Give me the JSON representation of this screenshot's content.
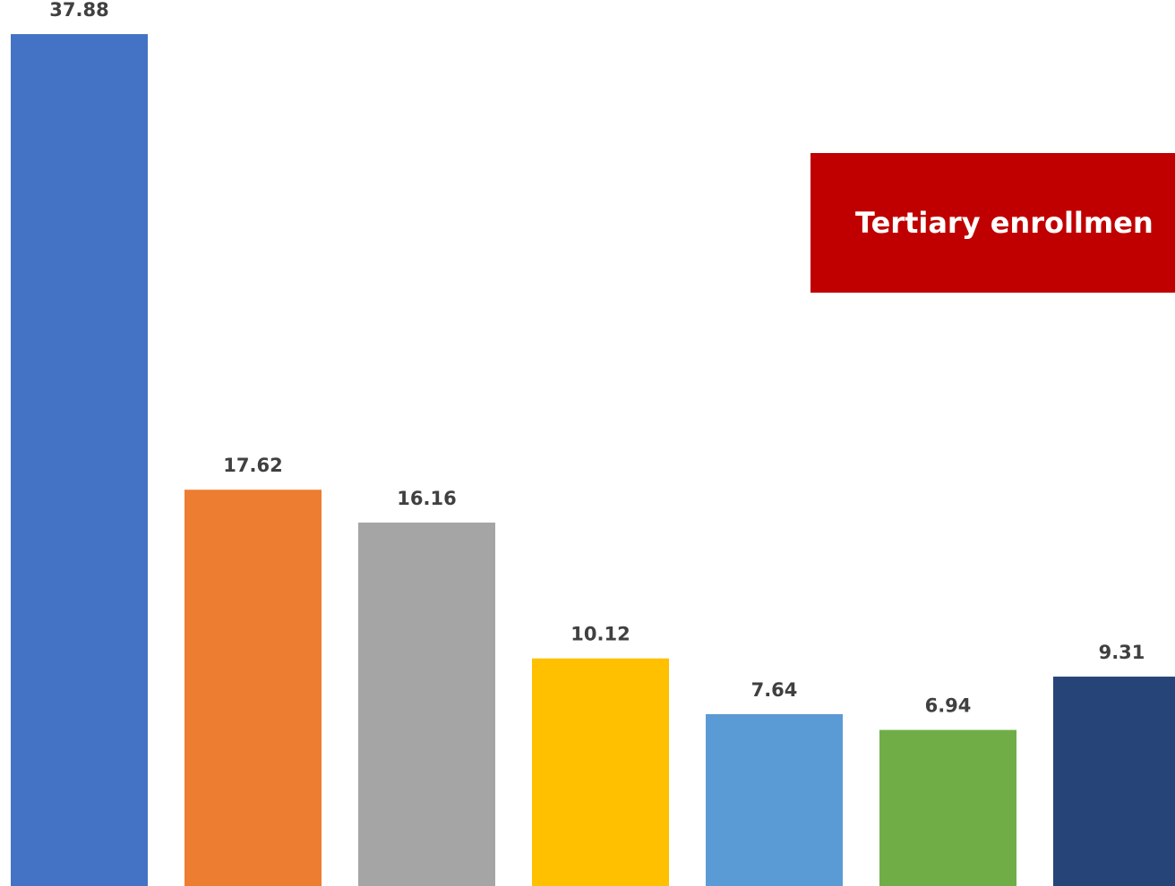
{
  "chart_data": {
    "type": "bar",
    "title": "Tertiary enrollmen",
    "xlabel": "",
    "ylabel": "",
    "ylim": [
      0,
      38.6
    ],
    "grid": false,
    "legend": "none",
    "values": [
      37.88,
      17.62,
      16.16,
      10.12,
      7.64,
      6.94,
      9.31
    ],
    "value_labels": [
      "37.88",
      "17.62",
      "16.16",
      "10.12",
      "7.64",
      "6.94",
      "9.31"
    ],
    "colors": [
      "#4472c4",
      "#ed7d31",
      "#a5a5a5",
      "#ffc000",
      "#5b9bd5",
      "#70ad47",
      "#264478"
    ],
    "title_box_color": "#c00000"
  }
}
